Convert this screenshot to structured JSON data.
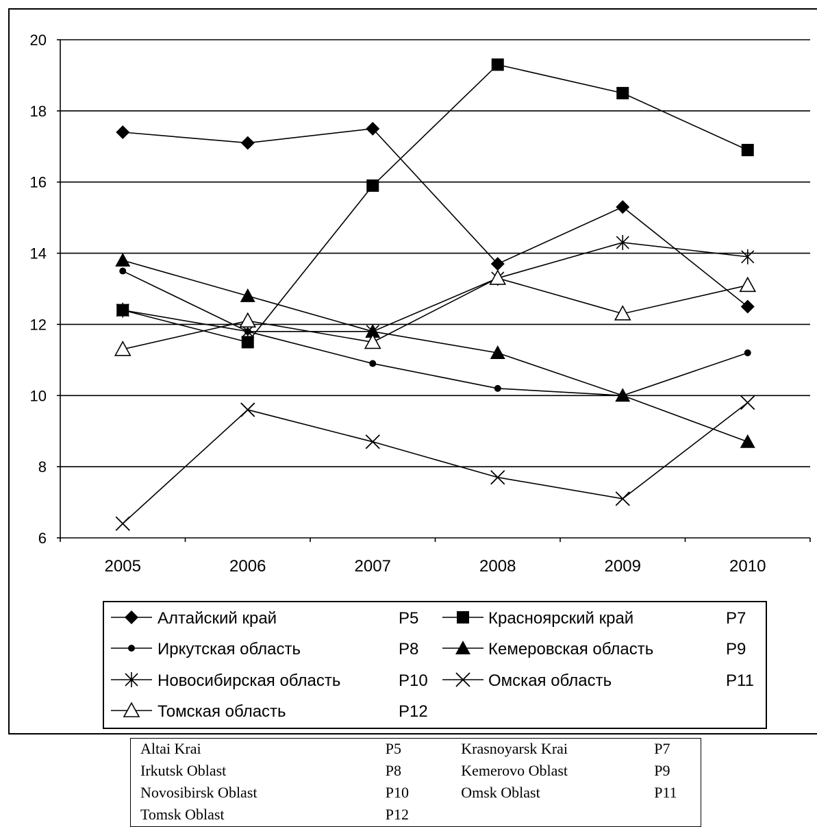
{
  "chart_data": {
    "type": "line",
    "categories": [
      "2005",
      "2006",
      "2007",
      "2008",
      "2009",
      "2010"
    ],
    "ylim": [
      6,
      20
    ],
    "yticks": [
      6,
      8,
      10,
      12,
      14,
      16,
      18,
      20
    ],
    "grid": "horizontal",
    "legend_position": "bottom",
    "series": [
      {
        "name": "Алтайский край",
        "code": "P5",
        "marker": "diamond",
        "values": [
          17.4,
          17.1,
          17.5,
          13.7,
          15.3,
          12.5
        ]
      },
      {
        "name": "Красноярский край",
        "code": "P7",
        "marker": "square",
        "values": [
          12.4,
          11.5,
          15.9,
          19.3,
          18.5,
          16.9
        ]
      },
      {
        "name": "Иркутская область",
        "code": "P8",
        "marker": "circle",
        "values": [
          13.5,
          11.8,
          10.9,
          10.2,
          10.0,
          11.2
        ]
      },
      {
        "name": "Кемеровская область",
        "code": "P9",
        "marker": "triangle",
        "values": [
          13.8,
          12.8,
          11.8,
          11.2,
          10.0,
          8.7
        ]
      },
      {
        "name": "Новосибирская область",
        "code": "P10",
        "marker": "star",
        "values": [
          12.4,
          11.8,
          11.8,
          13.3,
          14.3,
          13.9
        ]
      },
      {
        "name": "Омская область",
        "code": "P11",
        "marker": "x",
        "values": [
          6.4,
          9.6,
          8.7,
          7.7,
          7.1,
          9.8
        ]
      },
      {
        "name": "Томская область",
        "code": "P12",
        "marker": "open-triangle",
        "values": [
          11.3,
          12.1,
          11.5,
          13.3,
          12.3,
          13.1
        ]
      }
    ]
  },
  "translation_table": [
    [
      "Altai Krai",
      "P5",
      "Krasnoyarsk Krai",
      "P7"
    ],
    [
      "Irkutsk Oblast",
      "P8",
      "Kemerovo Oblast",
      "P9"
    ],
    [
      "Novosibirsk Oblast",
      "P10",
      "Omsk Oblast",
      "P11"
    ],
    [
      "Tomsk Oblast",
      "P12",
      "",
      ""
    ]
  ]
}
